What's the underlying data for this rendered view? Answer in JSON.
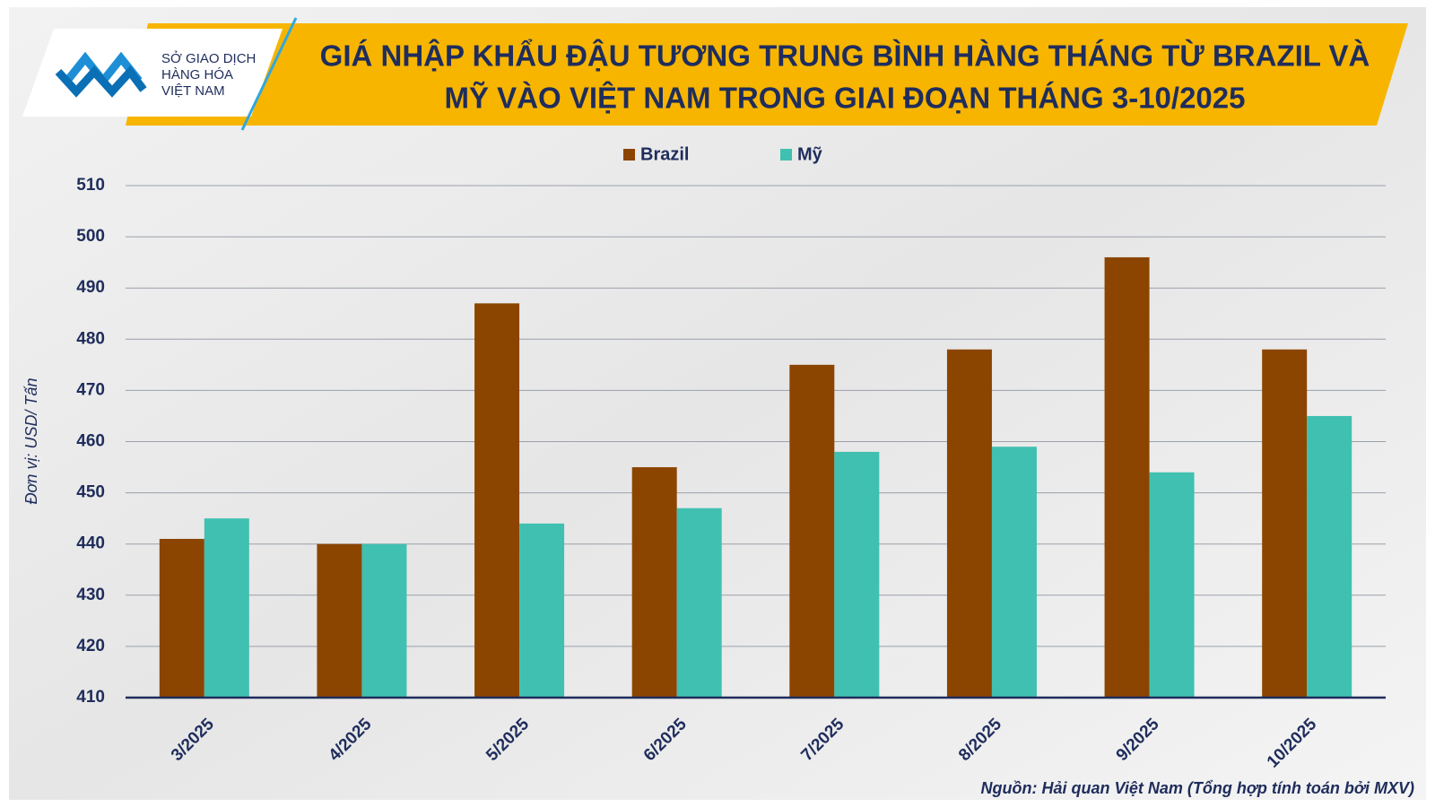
{
  "logo_text": [
    "SỞ GIAO DỊCH",
    "HÀNG HÓA",
    "VIỆT NAM"
  ],
  "chart_data": {
    "type": "bar",
    "title": [
      "GIÁ NHẬP KHẨU ĐẬU TƯƠNG TRUNG BÌNH HÀNG THÁNG TỪ BRAZIL VÀ",
      "MỸ VÀO VIỆT NAM TRONG GIAI ĐOẠN THÁNG 3-10/2025"
    ],
    "y_label": "Đơn vị:  USD/ Tấn",
    "source": "Nguồn: Hải quan Việt Nam (Tổng hợp tính toán bởi MXV)",
    "categories": [
      "3/2025",
      "4/2025",
      "5/2025",
      "6/2025",
      "7/2025",
      "8/2025",
      "9/2025",
      "10/2025"
    ],
    "series": [
      {
        "name": "Brazil",
        "color": "#8b4500",
        "values": [
          441,
          440,
          487,
          455,
          475,
          478,
          496,
          478
        ]
      },
      {
        "name": "Mỹ",
        "color": "#40c0b0",
        "values": [
          445,
          440,
          444,
          447,
          458,
          459,
          454,
          465
        ]
      }
    ],
    "ylim": [
      410,
      510
    ],
    "yticks": [
      410,
      420,
      430,
      440,
      450,
      460,
      470,
      480,
      490,
      500,
      510
    ],
    "grid": true
  }
}
